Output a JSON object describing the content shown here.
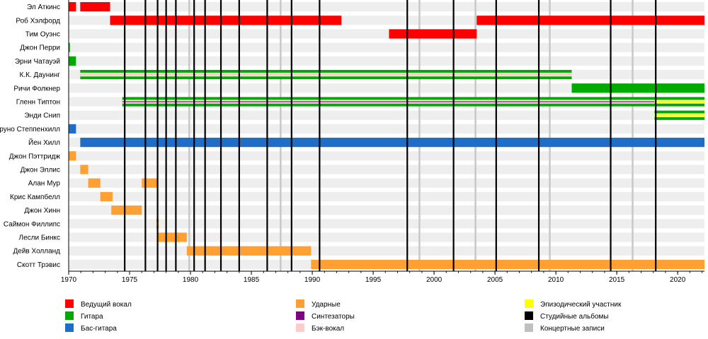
{
  "chart_data": {
    "type": "timeline",
    "x_range": [
      1970,
      2022.2
    ],
    "ticks": [
      1970,
      1975,
      1980,
      1985,
      1990,
      1995,
      2000,
      2005,
      2010,
      2015,
      2020
    ],
    "tick_labels": [
      "1970",
      "1975",
      "1980",
      "1985",
      "1990",
      "1995",
      "2000",
      "2005",
      "2010",
      "2015",
      "2020"
    ],
    "members": [
      {
        "name": "Эл Аткинс",
        "roles": [
          {
            "role": "vocal",
            "start": 1970.0,
            "end": 1970.6
          },
          {
            "role": "vocal",
            "start": 1970.95,
            "end": 1973.4
          }
        ]
      },
      {
        "name": "Роб Хэлфорд",
        "roles": [
          {
            "role": "vocal",
            "start": 1973.4,
            "end": 1992.4
          },
          {
            "role": "vocal",
            "start": 2003.5,
            "end": 2022.2
          }
        ]
      },
      {
        "name": "Тим Оуэнс",
        "roles": [
          {
            "role": "vocal",
            "start": 1996.3,
            "end": 2003.5
          }
        ]
      },
      {
        "name": "Джон Перри",
        "roles": [
          {
            "role": "guitar",
            "start": 1970.0,
            "end": 1970.1
          }
        ]
      },
      {
        "name": "Эрни Чатауэй",
        "roles": [
          {
            "role": "guitar",
            "start": 1970.0,
            "end": 1970.6
          }
        ]
      },
      {
        "name": "К.К. Даунинг",
        "roles": [
          {
            "role": "guitar",
            "start": 1970.95,
            "end": 2011.3
          },
          {
            "role": "backing",
            "start": 1970.95,
            "end": 2011.3
          }
        ]
      },
      {
        "name": "Ричи Фолкнер",
        "roles": [
          {
            "role": "guitar",
            "start": 2011.3,
            "end": 2022.2
          }
        ]
      },
      {
        "name": "Гленн Типтон",
        "roles": [
          {
            "role": "guitar",
            "start": 1974.4,
            "end": 2022.2
          },
          {
            "role": "backing",
            "start": 1974.4,
            "end": 2018.1
          },
          {
            "role": "synth",
            "start": 1974.4,
            "end": 2018.1
          },
          {
            "role": "guest",
            "start": 2018.1,
            "end": 2022.2
          }
        ]
      },
      {
        "name": "Энди Снип",
        "roles": [
          {
            "role": "guitar",
            "start": 2018.1,
            "end": 2022.2
          },
          {
            "role": "guest",
            "start": 2018.1,
            "end": 2022.2
          }
        ]
      },
      {
        "name": "Бруно Степпенхилл",
        "roles": [
          {
            "role": "bass",
            "start": 1970.0,
            "end": 1970.6
          }
        ]
      },
      {
        "name": "Йен Хилл",
        "roles": [
          {
            "role": "bass",
            "start": 1970.95,
            "end": 2022.2
          }
        ]
      },
      {
        "name": "Джон Пэттридж",
        "roles": [
          {
            "role": "drums",
            "start": 1970.0,
            "end": 1970.6
          }
        ]
      },
      {
        "name": "Джон Эллис",
        "roles": [
          {
            "role": "drums",
            "start": 1970.95,
            "end": 1971.6
          }
        ]
      },
      {
        "name": "Алан Мур",
        "roles": [
          {
            "role": "drums",
            "start": 1971.6,
            "end": 1972.6
          },
          {
            "role": "drums",
            "start": 1976.0,
            "end": 1977.3
          }
        ]
      },
      {
        "name": "Крис Кампбелл",
        "roles": [
          {
            "role": "drums",
            "start": 1972.6,
            "end": 1973.6
          }
        ]
      },
      {
        "name": "Джон Хинн",
        "roles": [
          {
            "role": "drums",
            "start": 1973.5,
            "end": 1976.0
          }
        ]
      },
      {
        "name": "Саймон Филлипс",
        "roles": [
          {
            "role": "drums",
            "start": 1977.2,
            "end": 1977.4
          },
          {
            "role": "guest",
            "start": 1977.2,
            "end": 1977.4
          }
        ]
      },
      {
        "name": "Лесли Бинкс",
        "roles": [
          {
            "role": "drums",
            "start": 1977.3,
            "end": 1979.7
          }
        ]
      },
      {
        "name": "Дейв Холланд",
        "roles": [
          {
            "role": "drums",
            "start": 1979.7,
            "end": 1989.9
          }
        ]
      },
      {
        "name": "Скотт Трэвис",
        "roles": [
          {
            "role": "drums",
            "start": 1989.9,
            "end": 2022.2
          }
        ]
      }
    ],
    "studio_albums": [
      1974.6,
      1976.3,
      1977.3,
      1978.0,
      1978.8,
      1980.3,
      1981.2,
      1982.5,
      1984.0,
      1986.3,
      1988.3,
      1990.6,
      1997.8,
      2001.6,
      2005.1,
      2008.6,
      2014.5,
      2018.2
    ],
    "live_albums": [
      1979.9,
      1987.4,
      1998.8,
      2003.4,
      2009.5,
      2016.3
    ],
    "legend": [
      {
        "key": "vocal",
        "label": "Ведущий вокал",
        "color": "#ff0000"
      },
      {
        "key": "guitar",
        "label": "Гитара",
        "color": "#00aa00"
      },
      {
        "key": "bass",
        "label": "Бас-гитара",
        "color": "#1e6ec8"
      },
      {
        "key": "drums",
        "label": "Ударные",
        "color": "#ffa033"
      },
      {
        "key": "synth",
        "label": "Синтезаторы",
        "color": "#800080"
      },
      {
        "key": "backing",
        "label": "Бэк-вокал",
        "color": "#ffcccc"
      },
      {
        "key": "guest",
        "label": "Эпизодический участник",
        "color": "#ffff00"
      },
      {
        "key": "studio",
        "label": "Студийные альбомы",
        "color": "#000000"
      },
      {
        "key": "live",
        "label": "Концертные записи",
        "color": "#c0c0c0"
      }
    ]
  }
}
